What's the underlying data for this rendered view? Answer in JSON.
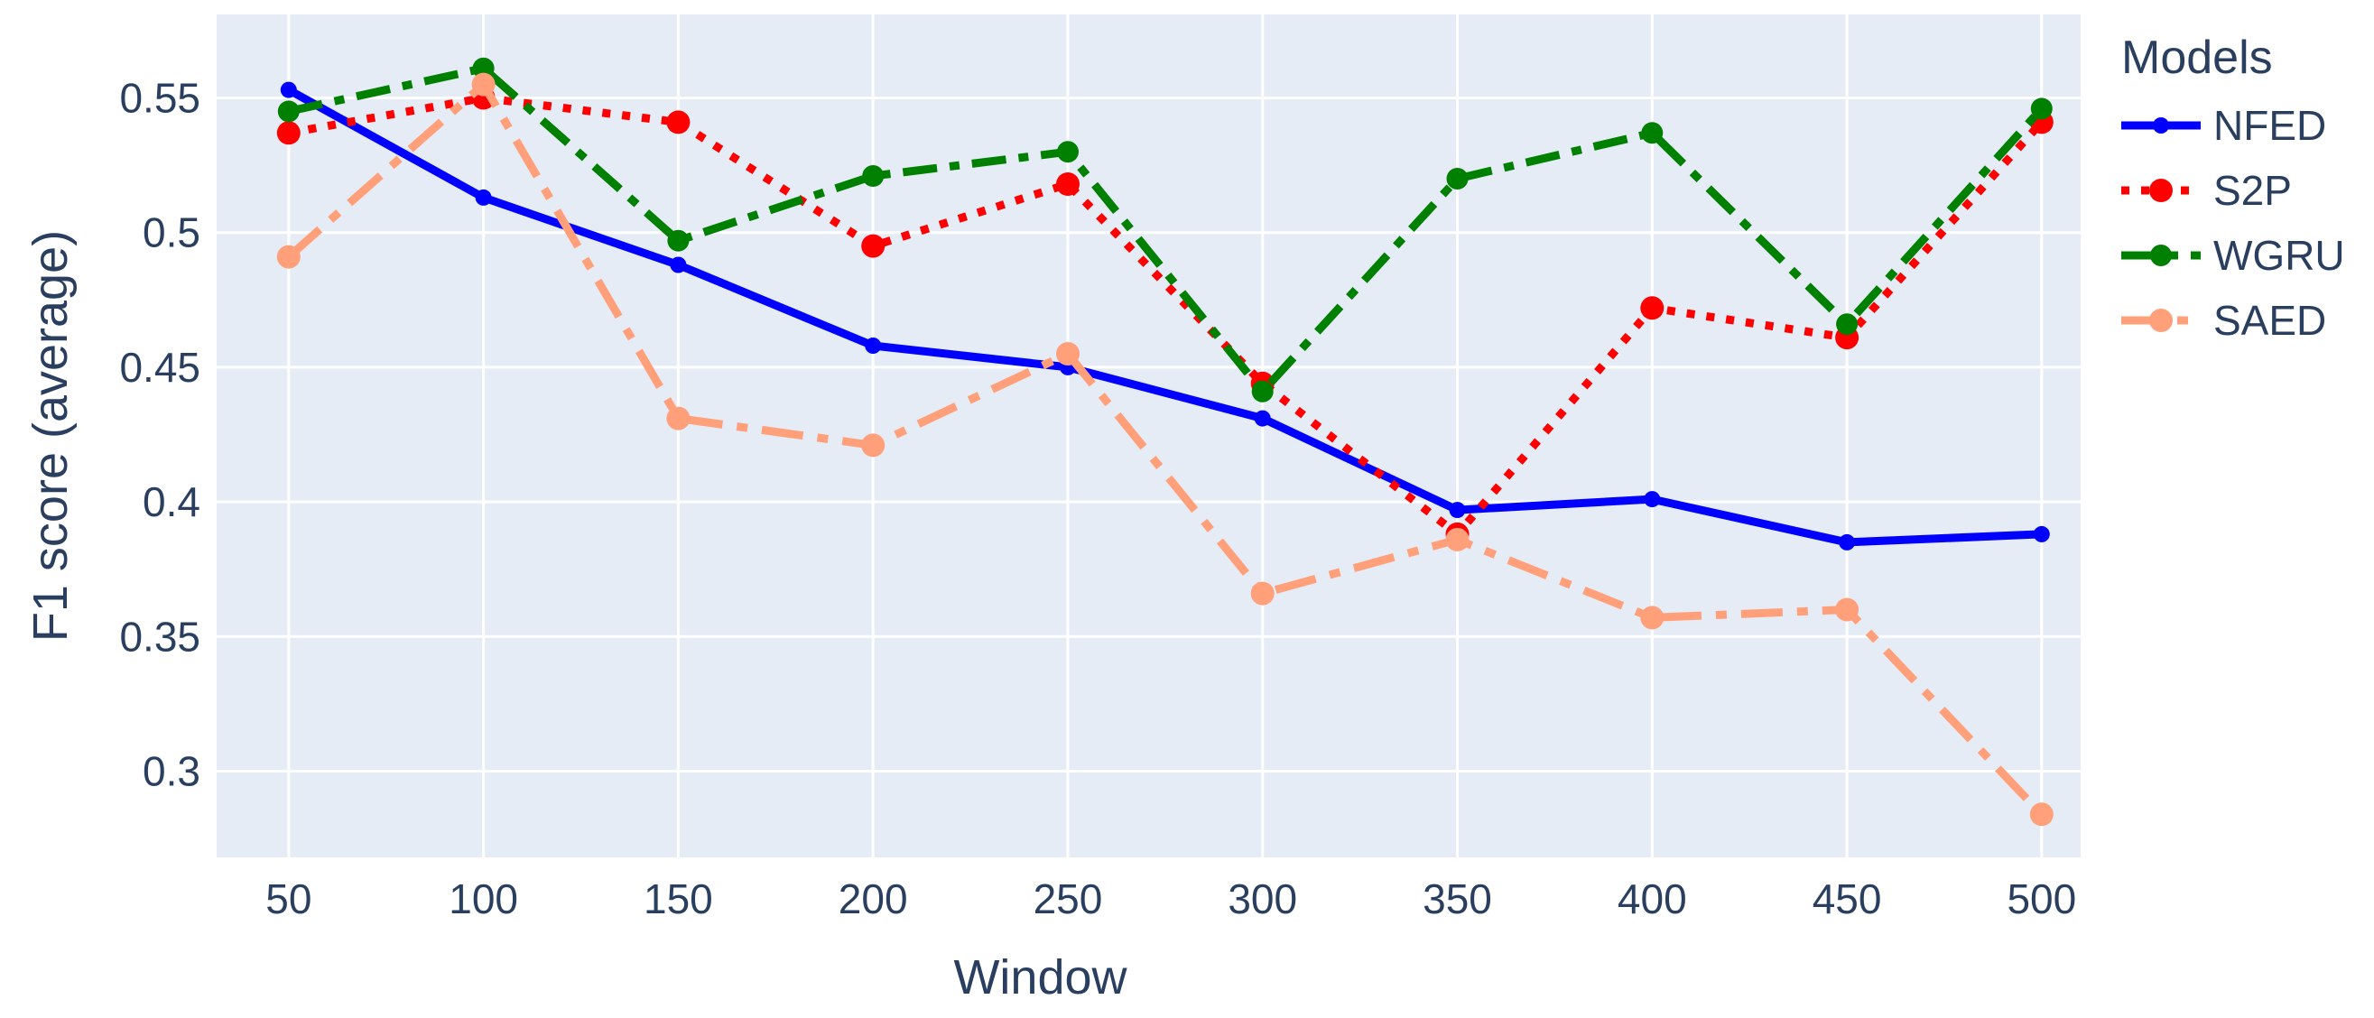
{
  "chart_data": {
    "type": "line",
    "title": "",
    "xlabel": "Window",
    "ylabel": "F1 score (average)",
    "legend_title": "Models",
    "legend_position": "right",
    "grid": true,
    "x": [
      50,
      100,
      150,
      200,
      250,
      300,
      350,
      400,
      450,
      500
    ],
    "series": [
      {
        "name": "NFED",
        "color": "#0000ff",
        "dash": "solid",
        "line_width": 9,
        "marker_size": 9,
        "values": [
          0.553,
          0.513,
          0.488,
          0.458,
          0.45,
          0.431,
          0.397,
          0.401,
          0.385,
          0.388
        ]
      },
      {
        "name": "S2P",
        "color": "#ff0000",
        "dash": "dot",
        "line_width": 9,
        "marker_size": 13,
        "values": [
          0.537,
          0.55,
          0.541,
          0.495,
          0.518,
          0.444,
          0.388,
          0.472,
          0.461,
          0.541
        ]
      },
      {
        "name": "WGRU",
        "color": "#008000",
        "dash": "dashdot",
        "line_width": 9,
        "marker_size": 12,
        "values": [
          0.545,
          0.561,
          0.497,
          0.521,
          0.53,
          0.441,
          0.52,
          0.537,
          0.466,
          0.546
        ]
      },
      {
        "name": "SAED",
        "color": "#ffa07a",
        "dash": "longdashdot",
        "line_width": 9,
        "marker_size": 13,
        "values": [
          0.491,
          0.555,
          0.431,
          0.421,
          0.455,
          0.366,
          0.386,
          0.357,
          0.36,
          0.284
        ]
      }
    ],
    "x_ticks": {
      "values": [
        50,
        100,
        150,
        200,
        250,
        300,
        350,
        400,
        450,
        500
      ],
      "labels": [
        "50",
        "100",
        "150",
        "200",
        "250",
        "300",
        "350",
        "400",
        "450",
        "500"
      ]
    },
    "y_ticks": {
      "values": [
        0.3,
        0.35,
        0.4,
        0.45,
        0.5,
        0.55
      ],
      "labels": [
        "0.3",
        "0.35",
        "0.4",
        "0.45",
        "0.5",
        "0.55"
      ]
    },
    "x_range": [
      31.5,
      510
    ],
    "y_range": [
      0.268,
      0.581
    ],
    "colors": {
      "plot_bg": "#e5ecf6",
      "grid": "#ffffff",
      "text": "#2a3f5f",
      "page_bg": "#ffffff"
    }
  }
}
